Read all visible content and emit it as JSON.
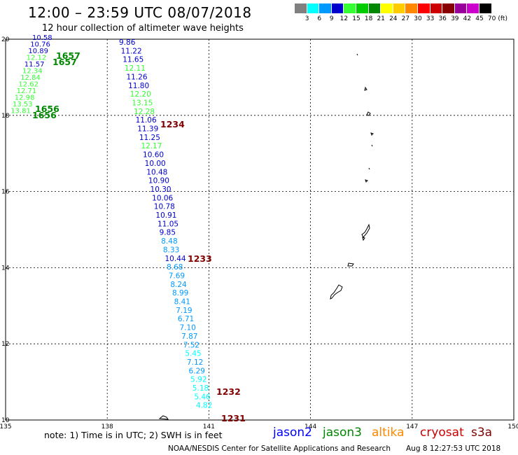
{
  "header": {
    "title": "12:00 – 23:59 UTC 08/07/2018",
    "subtitle": "12 hour collection of altimeter wave heights"
  },
  "legend": {
    "colors": [
      "#808080",
      "#00ffff",
      "#0099ff",
      "#0000cc",
      "#33ff33",
      "#00cc00",
      "#008800",
      "#ffff00",
      "#ffcc00",
      "#ff8800",
      "#ff0000",
      "#cc0000",
      "#880000",
      "#990099",
      "#cc00cc",
      "#000000"
    ],
    "labels": [
      "3",
      "6",
      "9",
      "12",
      "15",
      "18",
      "21",
      "24",
      "27",
      "30",
      "33",
      "36",
      "39",
      "42",
      "45",
      "70",
      "(ft)"
    ]
  },
  "axes": {
    "x_ticks": [
      "135",
      "138",
      "141",
      "144",
      "147",
      "150"
    ],
    "y_ticks": [
      "20",
      "18",
      "16",
      "14",
      "12",
      "10"
    ],
    "x_range": [
      135,
      150
    ],
    "y_range": [
      10,
      20
    ]
  },
  "track_labels": {
    "pass_1657": "1657",
    "pass_1657b": "1657",
    "pass_1656": "1656",
    "pass_1656b": "1656",
    "pass_1234": "1234",
    "pass_1233": "1233",
    "pass_1232": "1232",
    "pass_1231": "1231"
  },
  "tracks": {
    "jason3_left": [
      {
        "v": "10.58",
        "c": "#0000cc"
      },
      {
        "v": "10.76",
        "c": "#0000cc"
      },
      {
        "v": "10.89",
        "c": "#0000cc"
      },
      {
        "v": "12.12",
        "c": "#33ff33"
      },
      {
        "v": "11.57",
        "c": "#0000cc"
      },
      {
        "v": "12.34",
        "c": "#33ff33"
      },
      {
        "v": "12.84",
        "c": "#33ff33"
      },
      {
        "v": "12.62",
        "c": "#33ff33"
      },
      {
        "v": "12.71",
        "c": "#33ff33"
      },
      {
        "v": "12.98",
        "c": "#33ff33"
      },
      {
        "v": "13.53",
        "c": "#33ff33"
      },
      {
        "v": "13.81",
        "c": "#33ff33"
      }
    ],
    "main": [
      {
        "v": "9.86",
        "c": "#0000cc"
      },
      {
        "v": "11.22",
        "c": "#0000cc"
      },
      {
        "v": "11.65",
        "c": "#0000cc"
      },
      {
        "v": "12.11",
        "c": "#33ff33"
      },
      {
        "v": "11.26",
        "c": "#0000cc"
      },
      {
        "v": "11.80",
        "c": "#0000cc"
      },
      {
        "v": "12.20",
        "c": "#33ff33"
      },
      {
        "v": "13.15",
        "c": "#33ff33"
      },
      {
        "v": "12.28",
        "c": "#33ff33"
      },
      {
        "v": "11.06",
        "c": "#0000cc"
      },
      {
        "v": "11.39",
        "c": "#0000cc"
      },
      {
        "v": "11.25",
        "c": "#0000cc"
      },
      {
        "v": "12.17",
        "c": "#33ff33"
      },
      {
        "v": "10.60",
        "c": "#0000cc"
      },
      {
        "v": "10.00",
        "c": "#0000cc"
      },
      {
        "v": "10.48",
        "c": "#0000cc"
      },
      {
        "v": "10.90",
        "c": "#0000cc"
      },
      {
        "v": "10.30",
        "c": "#0000cc"
      },
      {
        "v": "10.06",
        "c": "#0000cc"
      },
      {
        "v": "10.78",
        "c": "#0000cc"
      },
      {
        "v": "10.91",
        "c": "#0000cc"
      },
      {
        "v": "11.05",
        "c": "#0000cc"
      },
      {
        "v": "9.85",
        "c": "#0000cc"
      },
      {
        "v": "8.48",
        "c": "#0099ff"
      },
      {
        "v": "8.33",
        "c": "#0099ff"
      },
      {
        "v": "10.44",
        "c": "#0000cc"
      },
      {
        "v": "8.68",
        "c": "#0099ff"
      },
      {
        "v": "7.69",
        "c": "#0099ff"
      },
      {
        "v": "8.24",
        "c": "#0099ff"
      },
      {
        "v": "8.99",
        "c": "#0099ff"
      },
      {
        "v": "8.41",
        "c": "#0099ff"
      },
      {
        "v": "7.19",
        "c": "#0099ff"
      },
      {
        "v": "6.71",
        "c": "#0099ff"
      },
      {
        "v": "7.10",
        "c": "#0099ff"
      },
      {
        "v": "7.87",
        "c": "#0099ff"
      },
      {
        "v": "7.52",
        "c": "#0099ff"
      },
      {
        "v": "5.45",
        "c": "#00ffff"
      },
      {
        "v": "7.12",
        "c": "#0099ff"
      },
      {
        "v": "6.29",
        "c": "#0099ff"
      },
      {
        "v": "5.92",
        "c": "#00ffff"
      },
      {
        "v": "5.18",
        "c": "#00ffff"
      },
      {
        "v": "5.46",
        "c": "#00ffff"
      },
      {
        "v": "4.82",
        "c": "#00ffff"
      }
    ]
  },
  "satellites": {
    "jason2": "jason2",
    "jason3": "jason3",
    "altika": "altika",
    "cryosat": "cryosat",
    "s3a": "s3a"
  },
  "footer": {
    "note": "note: 1) Time is in UTC; 2) SWH is in feet",
    "credit": "NOAA/NESDIS Center for Satellite Applications and Research",
    "timestamp": "Aug  8 12:27:53 UTC 2018"
  }
}
